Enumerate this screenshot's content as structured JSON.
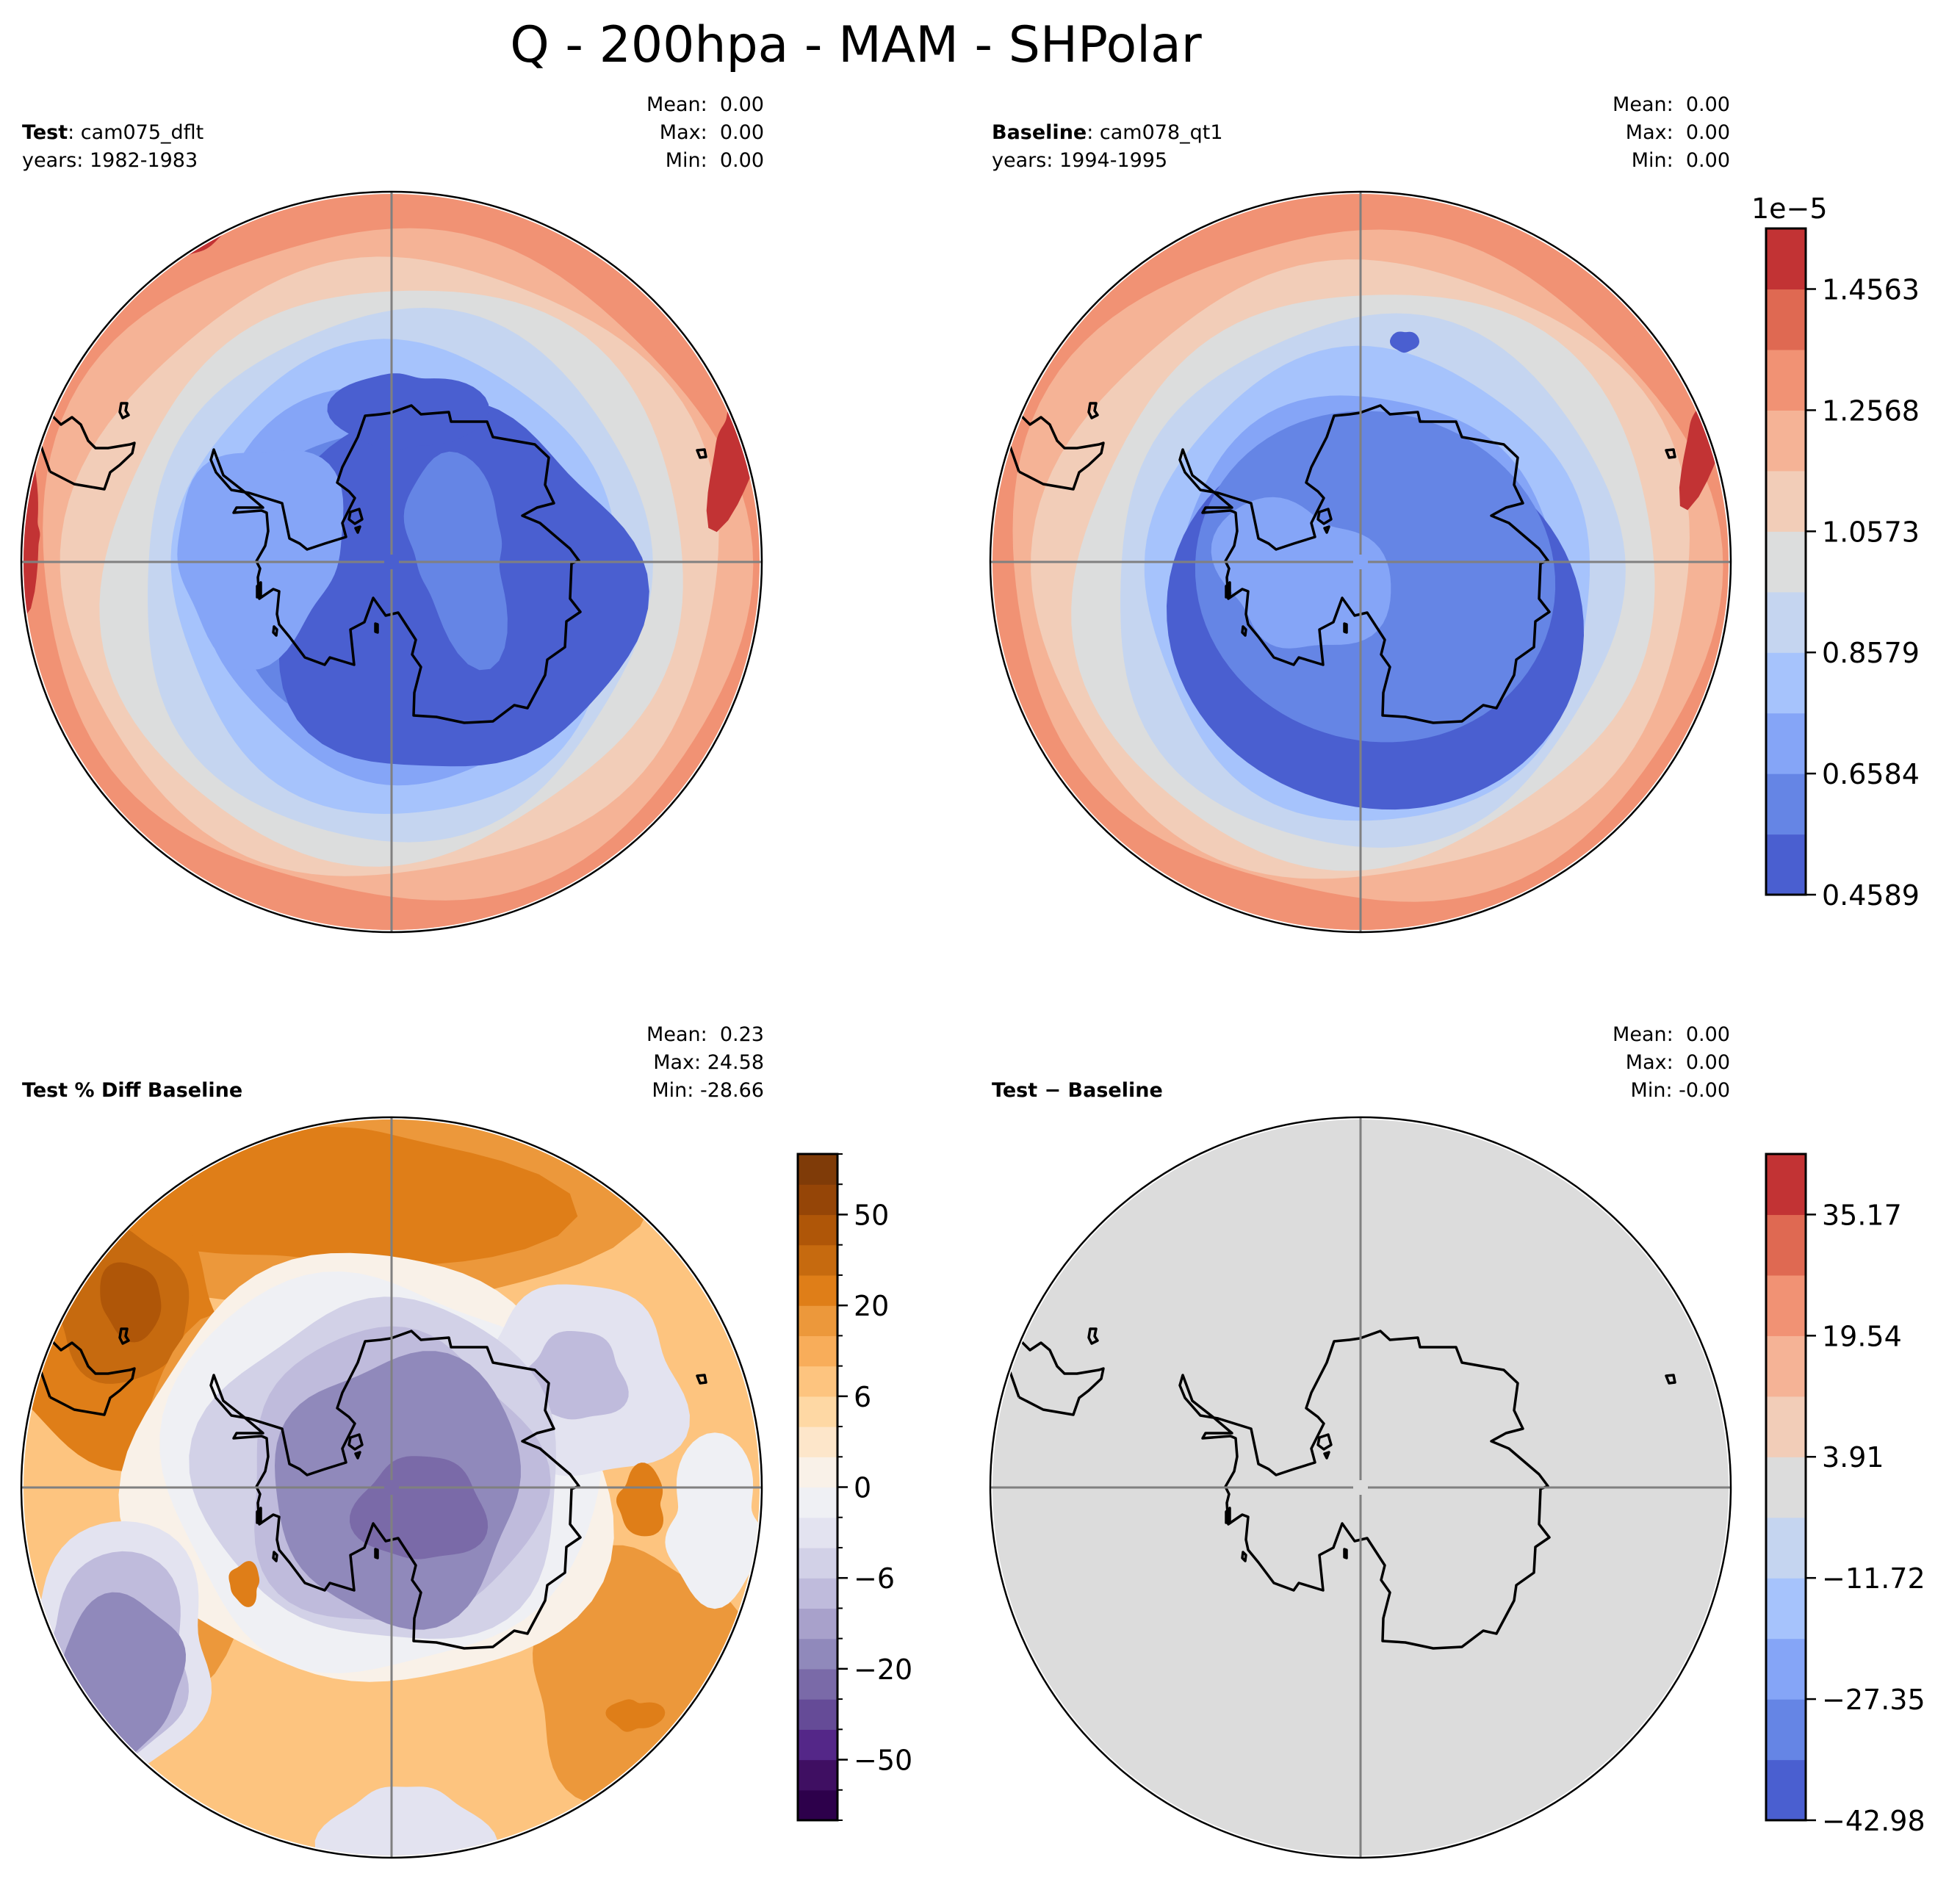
{
  "title": "Q - 200hpa - MAM - SHPolar",
  "panels": [
    {
      "id": "test",
      "label_bold": "Test",
      "label_rest": ": cam075_dflt",
      "years": "years: 1982-1983",
      "stats": {
        "mean": "Mean:  0.00",
        "max": "Max:  0.00",
        "min": "Min:  0.00"
      },
      "colormap": "coolwarm",
      "field": "test"
    },
    {
      "id": "baseline",
      "label_bold": "Baseline",
      "label_rest": ": cam078_qt1",
      "years": "years: 1994-1995",
      "stats": {
        "mean": "Mean:  0.00",
        "max": "Max:  0.00",
        "min": "Min:  0.00"
      },
      "colormap": "coolwarm",
      "field": "baseline"
    },
    {
      "id": "pct-diff",
      "label_bold": "Test % Diff Baseline",
      "label_rest": "",
      "years": "",
      "stats": {
        "mean": "Mean:  0.23",
        "max": "Max: 24.58",
        "min": "Min: -28.66"
      },
      "colormap": "PuOr",
      "field": "pctdiff"
    },
    {
      "id": "diff",
      "label_bold": "Test",
      "label_rest": " − Baseline",
      "years": "",
      "stats": {
        "mean": "Mean:  0.00",
        "max": "Max:  0.00",
        "min": "Min: -0.00"
      },
      "colormap": "coolwarm",
      "field": "diff"
    }
  ],
  "chart_data": [
    {
      "type": "heatmap",
      "title": "Test: cam075_dflt (years: 1982-1983)",
      "projection": "South Polar Stereographic",
      "variable": "Q",
      "units_multiplier": "1e−5",
      "stats": {
        "mean": 0.0,
        "max": 0.0,
        "min": 0.0
      },
      "description": "Low specific humidity (~0.46-0.66e-5) over Antarctica, rising to ~1.5e-5 near the 50S boundary",
      "colorbar": {
        "levels": [
          0.4589,
          0.5587,
          0.6584,
          0.7582,
          0.8579,
          0.9576,
          1.0573,
          1.1571,
          1.2568,
          1.3566,
          1.4563,
          1.5561
        ],
        "tick_labels": [
          "0.4589",
          "0.6584",
          "0.8579",
          "1.0573",
          "1.2568",
          "1.4563"
        ],
        "offset_label": "1e−5",
        "colors": [
          "#4a5fd0",
          "#6585e5",
          "#85a5f7",
          "#a6c3fc",
          "#c5d5f0",
          "#dcdddd",
          "#f2cdb8",
          "#f5b396",
          "#f19274",
          "#df6952",
          "#c23334"
        ]
      }
    },
    {
      "type": "heatmap",
      "title": "Baseline: cam078_qt1 (years: 1994-1995)",
      "projection": "South Polar Stereographic",
      "variable": "Q",
      "stats": {
        "mean": 0.0,
        "max": 0.0,
        "min": 0.0
      },
      "description": "Similar pattern to Test; minimum band north of East Antarctica, maxima at outer boundary",
      "colorbar_shared_with": "test"
    },
    {
      "type": "heatmap",
      "title": "Test % Diff Baseline",
      "projection": "South Polar Stereographic",
      "stats": {
        "mean": 0.23,
        "max": 24.58,
        "min": -28.66
      },
      "description": "Negative (purple) over Antarctica and SW sector, positive (orange) in a ring and NW sector",
      "colorbar": {
        "tick_labels": [
          "−50",
          "−20",
          "−6",
          "0",
          "6",
          "20",
          "50"
        ],
        "tick_values": [
          -50,
          -20,
          -6,
          0,
          6,
          20,
          50
        ],
        "n_bins": 22,
        "colors": [
          "#2d004b",
          "#3f0f62",
          "#542788",
          "#654b97",
          "#7a6aa8",
          "#9089bb",
          "#a8a1cb",
          "#bfbbdc",
          "#d2d1e7",
          "#e3e3f0",
          "#eff0f4",
          "#f9f1e8",
          "#fde6ca",
          "#fed8a4",
          "#fdc47f",
          "#f8ad5a",
          "#ec983b",
          "#df7e18",
          "#c66a0f",
          "#af5608",
          "#954507",
          "#7f3b08"
        ]
      }
    },
    {
      "type": "heatmap",
      "title": "Test − Baseline",
      "projection": "South Polar Stereographic",
      "stats": {
        "mean": 0.0,
        "max": 0.0,
        "min": -0.0
      },
      "description": "Uniform field at ~0 (neutral gray) everywhere",
      "colorbar": {
        "levels": [
          -42.98,
          -35.16,
          -27.35,
          -19.53,
          -11.72,
          -3.91,
          3.91,
          11.72,
          19.54,
          27.35,
          35.17,
          42.98
        ],
        "tick_labels": [
          "−42.98",
          "−27.35",
          "−11.72",
          "3.91",
          "19.54",
          "35.17"
        ],
        "colors": [
          "#4a5fd0",
          "#6585e5",
          "#85a5f7",
          "#a6c3fc",
          "#c5d5f0",
          "#dcdcdc",
          "#f2cdb8",
          "#f5b396",
          "#f19274",
          "#df6952",
          "#c23334"
        ]
      }
    }
  ]
}
